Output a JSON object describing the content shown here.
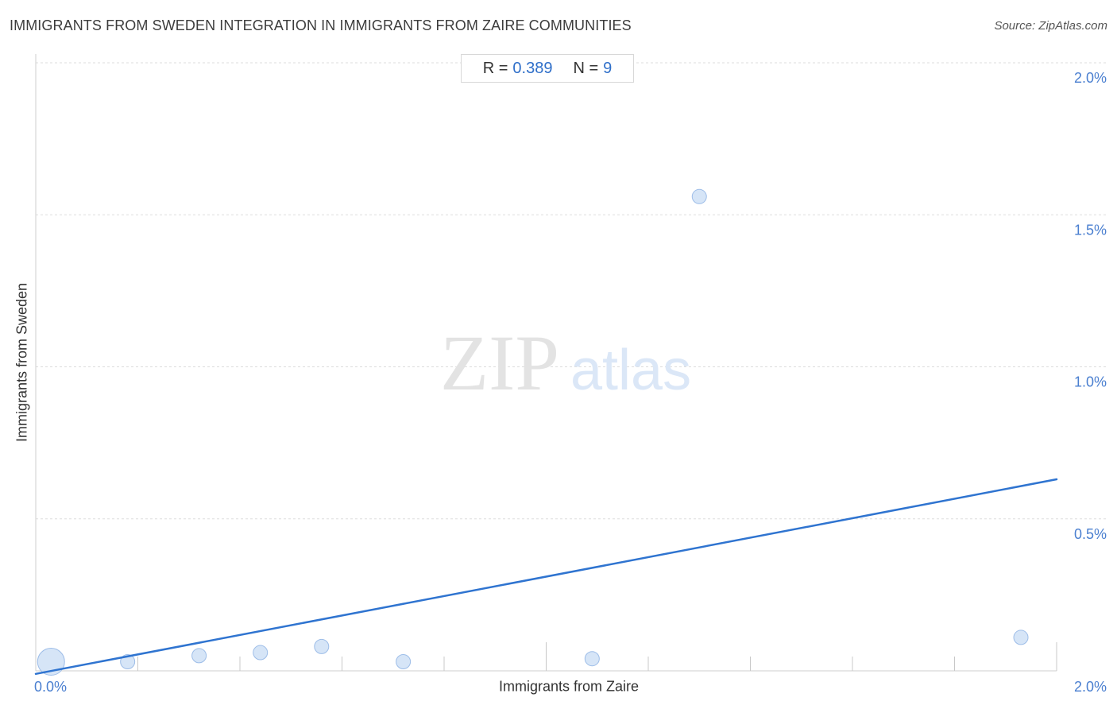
{
  "header": {
    "title": "IMMIGRANTS FROM SWEDEN INTEGRATION IN IMMIGRANTS FROM ZAIRE COMMUNITIES",
    "source": "Source: ZipAtlas.com"
  },
  "stats": {
    "r_label": "R =",
    "r_value": "0.389",
    "n_label": "N =",
    "n_value": "9"
  },
  "watermark": {
    "zip": "ZIP",
    "atlas": "atlas"
  },
  "colors": {
    "accent": "#2f74d0",
    "point_fill": "#cfe0f6",
    "point_stroke": "#9dbde8",
    "grid": "#dddddd",
    "tick_text": "#4a7fd0"
  },
  "chart_data": {
    "type": "scatter",
    "title": "IMMIGRANTS FROM SWEDEN INTEGRATION IN IMMIGRANTS FROM ZAIRE COMMUNITIES",
    "xlabel": "Immigrants from Zaire",
    "ylabel": "Immigrants from Sweden",
    "xlim": [
      0,
      2.0
    ],
    "ylim": [
      0,
      2.0
    ],
    "x_tick_labels": [
      {
        "value": 0,
        "label": "0.0%"
      },
      {
        "value": 2.0,
        "label": "2.0%"
      }
    ],
    "y_tick_labels": [
      {
        "value": 0.5,
        "label": "0.5%"
      },
      {
        "value": 1.0,
        "label": "1.0%"
      },
      {
        "value": 1.5,
        "label": "1.5%"
      },
      {
        "value": 2.0,
        "label": "2.0%"
      }
    ],
    "grid": true,
    "points": [
      {
        "x": 0.03,
        "y": 0.03,
        "size": 3
      },
      {
        "x": 0.18,
        "y": 0.03,
        "size": 1
      },
      {
        "x": 0.32,
        "y": 0.05,
        "size": 1
      },
      {
        "x": 0.44,
        "y": 0.06,
        "size": 1
      },
      {
        "x": 0.56,
        "y": 0.08,
        "size": 1
      },
      {
        "x": 0.72,
        "y": 0.03,
        "size": 1
      },
      {
        "x": 1.09,
        "y": 0.04,
        "size": 1
      },
      {
        "x": 1.3,
        "y": 1.56,
        "size": 1
      },
      {
        "x": 1.93,
        "y": 0.11,
        "size": 1
      }
    ],
    "trendline": {
      "x": [
        0,
        2.0
      ],
      "y": [
        -0.01,
        0.63
      ]
    },
    "stats": {
      "R": 0.389,
      "N": 9
    }
  }
}
